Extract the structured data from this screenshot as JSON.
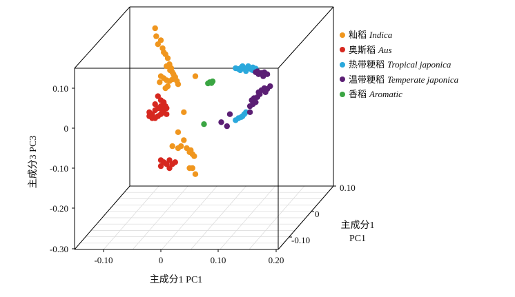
{
  "chart_data": {
    "type": "scatter",
    "subtype": "3d-pca",
    "axes": {
      "x": {
        "label": "主成分1 PC1",
        "ticks": [
          "-0.10",
          "0",
          "0.10",
          "0.20"
        ]
      },
      "y": {
        "label": "主成分3 PC3",
        "ticks": [
          "0.10",
          "0",
          "-0.10",
          "-0.20",
          "-0.30"
        ]
      },
      "z": {
        "label": [
          "主成分1",
          "PC1"
        ],
        "ticks": [
          "0.10",
          "0",
          "-0.10"
        ]
      }
    },
    "legend_position": "top-right",
    "series": [
      {
        "key": "indica",
        "name_cn": "籼稻",
        "name_latin": "Indica",
        "color": "#f0961e"
      },
      {
        "key": "aus",
        "name_cn": "奥斯稻",
        "name_latin": "Aus",
        "color": "#d6281f"
      },
      {
        "key": "tropical",
        "name_cn": "热带粳稻",
        "name_latin": "Tropical japonica",
        "color": "#2aa8dc"
      },
      {
        "key": "temperate",
        "name_cn": "温带粳稻",
        "name_latin": "Temperate japonica",
        "color": "#5b1f74"
      },
      {
        "key": "aromatic",
        "name_cn": "香稻",
        "name_latin": "Aromatic",
        "color": "#3aa542"
      }
    ],
    "points": {
      "indica": [
        [
          -0.01,
          0.25
        ],
        [
          -0.008,
          0.23
        ],
        [
          -0.005,
          0.21
        ],
        [
          0.0,
          0.22
        ],
        [
          0.003,
          0.2
        ],
        [
          0.005,
          0.19
        ],
        [
          0.008,
          0.185
        ],
        [
          0.012,
          0.175
        ],
        [
          0.015,
          0.16
        ],
        [
          0.018,
          0.15
        ],
        [
          0.02,
          0.14
        ],
        [
          0.022,
          0.135
        ],
        [
          0.016,
          0.145
        ],
        [
          0.01,
          0.155
        ],
        [
          0.0,
          0.13
        ],
        [
          0.005,
          0.125
        ],
        [
          0.01,
          0.12
        ],
        [
          0.015,
          0.118
        ],
        [
          0.02,
          0.122
        ],
        [
          0.025,
          0.128
        ],
        [
          0.03,
          0.11
        ],
        [
          0.028,
          0.118
        ],
        [
          0.012,
          0.105
        ],
        [
          0.008,
          0.1
        ],
        [
          -0.002,
          0.115
        ],
        [
          0.06,
          0.13
        ],
        [
          0.04,
          0.04
        ],
        [
          0.03,
          -0.01
        ],
        [
          0.04,
          -0.03
        ],
        [
          0.045,
          -0.05
        ],
        [
          0.05,
          -0.06
        ],
        [
          0.055,
          -0.065
        ],
        [
          0.058,
          -0.07
        ],
        [
          0.052,
          -0.055
        ],
        [
          0.035,
          -0.045
        ],
        [
          0.03,
          -0.05
        ],
        [
          0.02,
          -0.045
        ],
        [
          0.05,
          -0.1
        ],
        [
          0.06,
          -0.115
        ],
        [
          0.055,
          -0.1
        ]
      ],
      "aus": [
        [
          -0.005,
          0.08
        ],
        [
          0.0,
          0.07
        ],
        [
          0.005,
          0.06
        ],
        [
          0.01,
          0.05
        ],
        [
          -0.01,
          0.045
        ],
        [
          -0.015,
          0.035
        ],
        [
          -0.02,
          0.03
        ],
        [
          -0.015,
          0.025
        ],
        [
          -0.01,
          0.025
        ],
        [
          -0.005,
          0.03
        ],
        [
          0.0,
          0.035
        ],
        [
          0.005,
          0.04
        ],
        [
          0.01,
          0.035
        ],
        [
          -0.005,
          0.05
        ],
        [
          0.0,
          0.055
        ],
        [
          0.005,
          0.065
        ],
        [
          -0.01,
          0.06
        ],
        [
          -0.02,
          0.04
        ],
        [
          0.008,
          0.055
        ],
        [
          0.002,
          0.045
        ],
        [
          0.0,
          -0.08
        ],
        [
          0.005,
          -0.085
        ],
        [
          0.01,
          -0.09
        ],
        [
          0.02,
          -0.09
        ],
        [
          0.025,
          -0.085
        ],
        [
          0.015,
          -0.08
        ],
        [
          0.015,
          -0.1
        ],
        [
          0.0,
          -0.095
        ]
      ],
      "tropical": [
        [
          0.13,
          0.15
        ],
        [
          0.135,
          0.148
        ],
        [
          0.14,
          0.152
        ],
        [
          0.145,
          0.15
        ],
        [
          0.15,
          0.148
        ],
        [
          0.155,
          0.15
        ],
        [
          0.16,
          0.152
        ],
        [
          0.138,
          0.145
        ],
        [
          0.148,
          0.143
        ],
        [
          0.158,
          0.146
        ],
        [
          0.165,
          0.149
        ],
        [
          0.142,
          0.155
        ],
        [
          0.152,
          0.155
        ],
        [
          0.16,
          0.145
        ],
        [
          0.13,
          0.02
        ],
        [
          0.135,
          0.025
        ],
        [
          0.14,
          0.028
        ],
        [
          0.145,
          0.035
        ],
        [
          0.148,
          0.04
        ],
        [
          0.142,
          0.03
        ]
      ],
      "temperate": [
        [
          0.165,
          0.14
        ],
        [
          0.17,
          0.135
        ],
        [
          0.175,
          0.138
        ],
        [
          0.18,
          0.14
        ],
        [
          0.185,
          0.135
        ],
        [
          0.168,
          0.142
        ],
        [
          0.178,
          0.13
        ],
        [
          0.17,
          0.09
        ],
        [
          0.175,
          0.095
        ],
        [
          0.18,
          0.1
        ],
        [
          0.185,
          0.098
        ],
        [
          0.19,
          0.105
        ],
        [
          0.182,
          0.09
        ],
        [
          0.172,
          0.085
        ],
        [
          0.168,
          0.078
        ],
        [
          0.162,
          0.075
        ],
        [
          0.158,
          0.07
        ],
        [
          0.155,
          0.055
        ],
        [
          0.16,
          0.06
        ],
        [
          0.165,
          0.065
        ],
        [
          0.155,
          0.04
        ],
        [
          0.12,
          0.035
        ],
        [
          0.105,
          0.015
        ],
        [
          0.115,
          0.005
        ]
      ],
      "aromatic": [
        [
          0.085,
          0.115
        ],
        [
          0.088,
          0.113
        ],
        [
          0.09,
          0.117
        ],
        [
          0.082,
          0.112
        ],
        [
          0.075,
          0.01
        ]
      ]
    }
  }
}
